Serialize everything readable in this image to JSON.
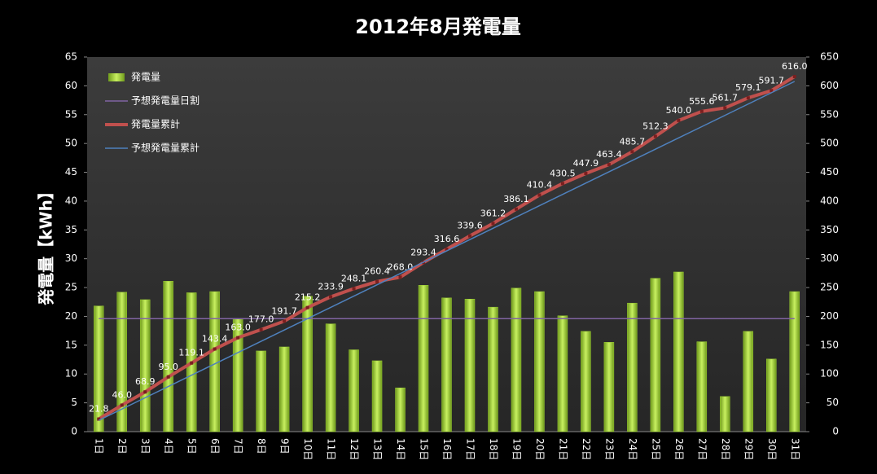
{
  "chart_data": {
    "type": "bar_line",
    "title": "2012年8月発電量",
    "y_label": "発電量【kWh】",
    "categories": [
      "1日",
      "2日",
      "3日",
      "4日",
      "5日",
      "6日",
      "7日",
      "8日",
      "9日",
      "10日",
      "11日",
      "12日",
      "13日",
      "14日",
      "15日",
      "16日",
      "17日",
      "18日",
      "19日",
      "20日",
      "21日",
      "22日",
      "23日",
      "24日",
      "25日",
      "26日",
      "27日",
      "28日",
      "29日",
      "30日",
      "31日"
    ],
    "series": [
      {
        "name": "発電量",
        "kind": "bar",
        "color": "#9acd32",
        "values": [
          21.8,
          24.2,
          22.9,
          26.1,
          24.1,
          24.3,
          19.6,
          14.0,
          14.7,
          23.5,
          18.7,
          14.2,
          12.3,
          7.6,
          25.4,
          23.2,
          23.0,
          21.6,
          24.9,
          24.3,
          20.1,
          17.4,
          15.5,
          22.3,
          26.6,
          27.7,
          15.6,
          6.1,
          17.4,
          12.6,
          24.3
        ]
      },
      {
        "name": "予想発電量日割",
        "kind": "line",
        "color": "#8064a2",
        "values": [
          19.6,
          19.6,
          19.6,
          19.6,
          19.6,
          19.6,
          19.6,
          19.6,
          19.6,
          19.6,
          19.6,
          19.6,
          19.6,
          19.6,
          19.6,
          19.6,
          19.6,
          19.6,
          19.6,
          19.6,
          19.6,
          19.6,
          19.6,
          19.6,
          19.6,
          19.6,
          19.6,
          19.6,
          19.6,
          19.6,
          19.6
        ]
      },
      {
        "name": "発電量累計",
        "kind": "line",
        "markers": true,
        "axis": "y2",
        "color": "#c0504d",
        "values": [
          21.8,
          46.0,
          68.9,
          95.0,
          119.1,
          143.4,
          163.0,
          177.0,
          191.7,
          215.2,
          233.9,
          248.1,
          260.4,
          268.0,
          293.4,
          316.6,
          339.6,
          361.2,
          386.1,
          410.4,
          430.5,
          447.9,
          463.4,
          485.7,
          512.3,
          540.0,
          555.6,
          561.7,
          579.1,
          591.7,
          616.0
        ],
        "value_labels": [
          "21.8",
          "46.0",
          "68.9",
          "95.0",
          "119.1",
          "143.4",
          "163.0",
          "177.0",
          "191.7",
          "215.2",
          "233.9",
          "248.1",
          "260.4",
          "268.0",
          "293.4",
          "316.6",
          "339.6",
          "361.2",
          "386.1",
          "410.4",
          "430.5",
          "447.9",
          "463.4",
          "485.7",
          "512.3",
          "540.0",
          "555.6",
          "561.7",
          "579.1",
          "591.7",
          "616.0"
        ]
      },
      {
        "name": "予想発電量累計",
        "kind": "line",
        "axis": "y2",
        "color": "#4f81bd",
        "values": [
          19.6,
          39.2,
          58.8,
          78.4,
          98.0,
          117.6,
          137.2,
          156.8,
          176.4,
          196.0,
          215.6,
          235.2,
          254.8,
          274.4,
          294.0,
          313.6,
          333.2,
          352.8,
          372.4,
          392.0,
          411.6,
          431.2,
          450.8,
          470.4,
          490.0,
          509.6,
          529.2,
          548.8,
          568.4,
          588.0,
          607.6
        ]
      }
    ],
    "ylim": [
      0,
      65
    ],
    "yticks": [
      0,
      5,
      10,
      15,
      20,
      25,
      30,
      35,
      40,
      45,
      50,
      55,
      60,
      65
    ],
    "y2lim": [
      0,
      650
    ],
    "y2ticks": [
      0,
      50,
      100,
      150,
      200,
      250,
      300,
      350,
      400,
      450,
      500,
      550,
      600,
      650
    ],
    "legend": "top-left"
  }
}
